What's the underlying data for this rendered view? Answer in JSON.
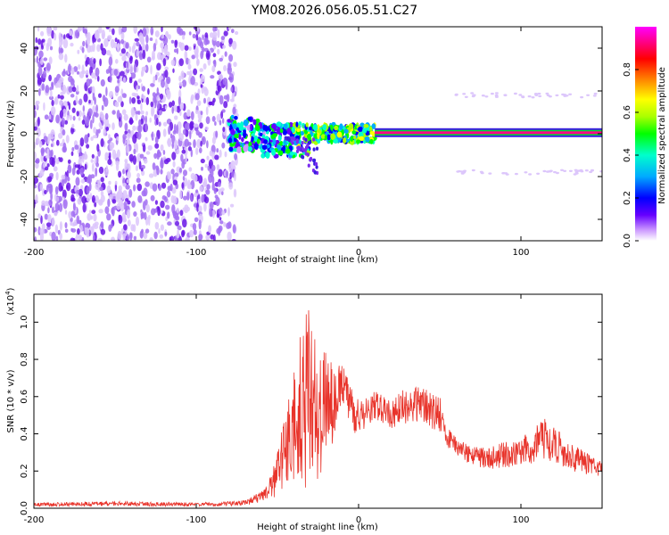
{
  "title": "YM08.2026.056.05.51.C27",
  "colors": {
    "snr_line": "#e8332a",
    "spectral_band": "#3b1fe0",
    "background": "#ffffff"
  },
  "chart_data": [
    {
      "type": "heatmap",
      "name": "spectrogram",
      "xlabel": "Height of straight line (km)",
      "ylabel": "Frequency (Hz)",
      "xlim": [
        -200,
        150
      ],
      "ylim": [
        -50,
        50
      ],
      "xticks": [
        -200,
        -100,
        0,
        100
      ],
      "yticks": [
        -40,
        -20,
        0,
        20,
        40
      ],
      "colorbar": {
        "label": "Normalized spectral amplitude",
        "range": [
          0,
          1
        ],
        "ticks": [
          "0.0",
          "0.2",
          "0.4",
          "0.6",
          "0.8"
        ],
        "tick_values": [
          0,
          0.2,
          0.4,
          0.6,
          0.8
        ],
        "colormap": [
          "#ffffff",
          "#cc99ff",
          "#6600ff",
          "#0000ff",
          "#00aaff",
          "#00ffcc",
          "#00ff00",
          "#aaff00",
          "#ffff00",
          "#ff8800",
          "#ff0000",
          "#ff0088",
          "#ff00ff"
        ]
      },
      "features": {
        "noise_region_km": [
          -200,
          -75
        ],
        "scatter_region_km": [
          -80,
          10
        ],
        "steady_line_km": [
          10,
          150
        ],
        "steady_line_freq_hz": 0.5,
        "steady_line_amplitude": 0.95,
        "side_bands_hz": [
          18,
          -18
        ]
      }
    },
    {
      "type": "line",
      "name": "snr",
      "xlabel": "Height of straight line (km)",
      "ylabel": "SNR (10 * v/v)",
      "y_multiplier": "(x10",
      "y_exponent": "4",
      "y_multiplier_close": ")",
      "xlim": [
        -200,
        150
      ],
      "ylim": [
        0,
        1.15
      ],
      "xticks": [
        -200,
        -100,
        0,
        100
      ],
      "yticks": [
        "0.0",
        "0.2",
        "0.4",
        "0.6",
        "0.8",
        "1.0"
      ],
      "ytick_values": [
        0,
        0.2,
        0.4,
        0.6,
        0.8,
        1.0
      ],
      "envelope": {
        "x": [
          -200,
          -150,
          -100,
          -80,
          -70,
          -60,
          -55,
          -50,
          -45,
          -40,
          -35,
          -30,
          -25,
          -20,
          -15,
          -10,
          -5,
          0,
          5,
          10,
          20,
          30,
          40,
          50,
          55,
          60,
          70,
          80,
          90,
          100,
          110,
          115,
          120,
          130,
          140,
          150
        ],
        "mid": [
          0.02,
          0.025,
          0.02,
          0.025,
          0.03,
          0.06,
          0.1,
          0.18,
          0.3,
          0.45,
          0.55,
          0.58,
          0.5,
          0.55,
          0.55,
          0.7,
          0.55,
          0.48,
          0.52,
          0.55,
          0.5,
          0.56,
          0.55,
          0.5,
          0.38,
          0.33,
          0.28,
          0.27,
          0.29,
          0.3,
          0.35,
          0.38,
          0.35,
          0.28,
          0.24,
          0.21
        ],
        "amp": [
          0.01,
          0.012,
          0.01,
          0.012,
          0.015,
          0.03,
          0.05,
          0.12,
          0.22,
          0.32,
          0.45,
          0.5,
          0.35,
          0.3,
          0.2,
          0.12,
          0.12,
          0.1,
          0.08,
          0.08,
          0.08,
          0.1,
          0.1,
          0.1,
          0.06,
          0.05,
          0.05,
          0.06,
          0.07,
          0.08,
          0.1,
          0.12,
          0.1,
          0.08,
          0.06,
          0.04
        ]
      }
    }
  ]
}
